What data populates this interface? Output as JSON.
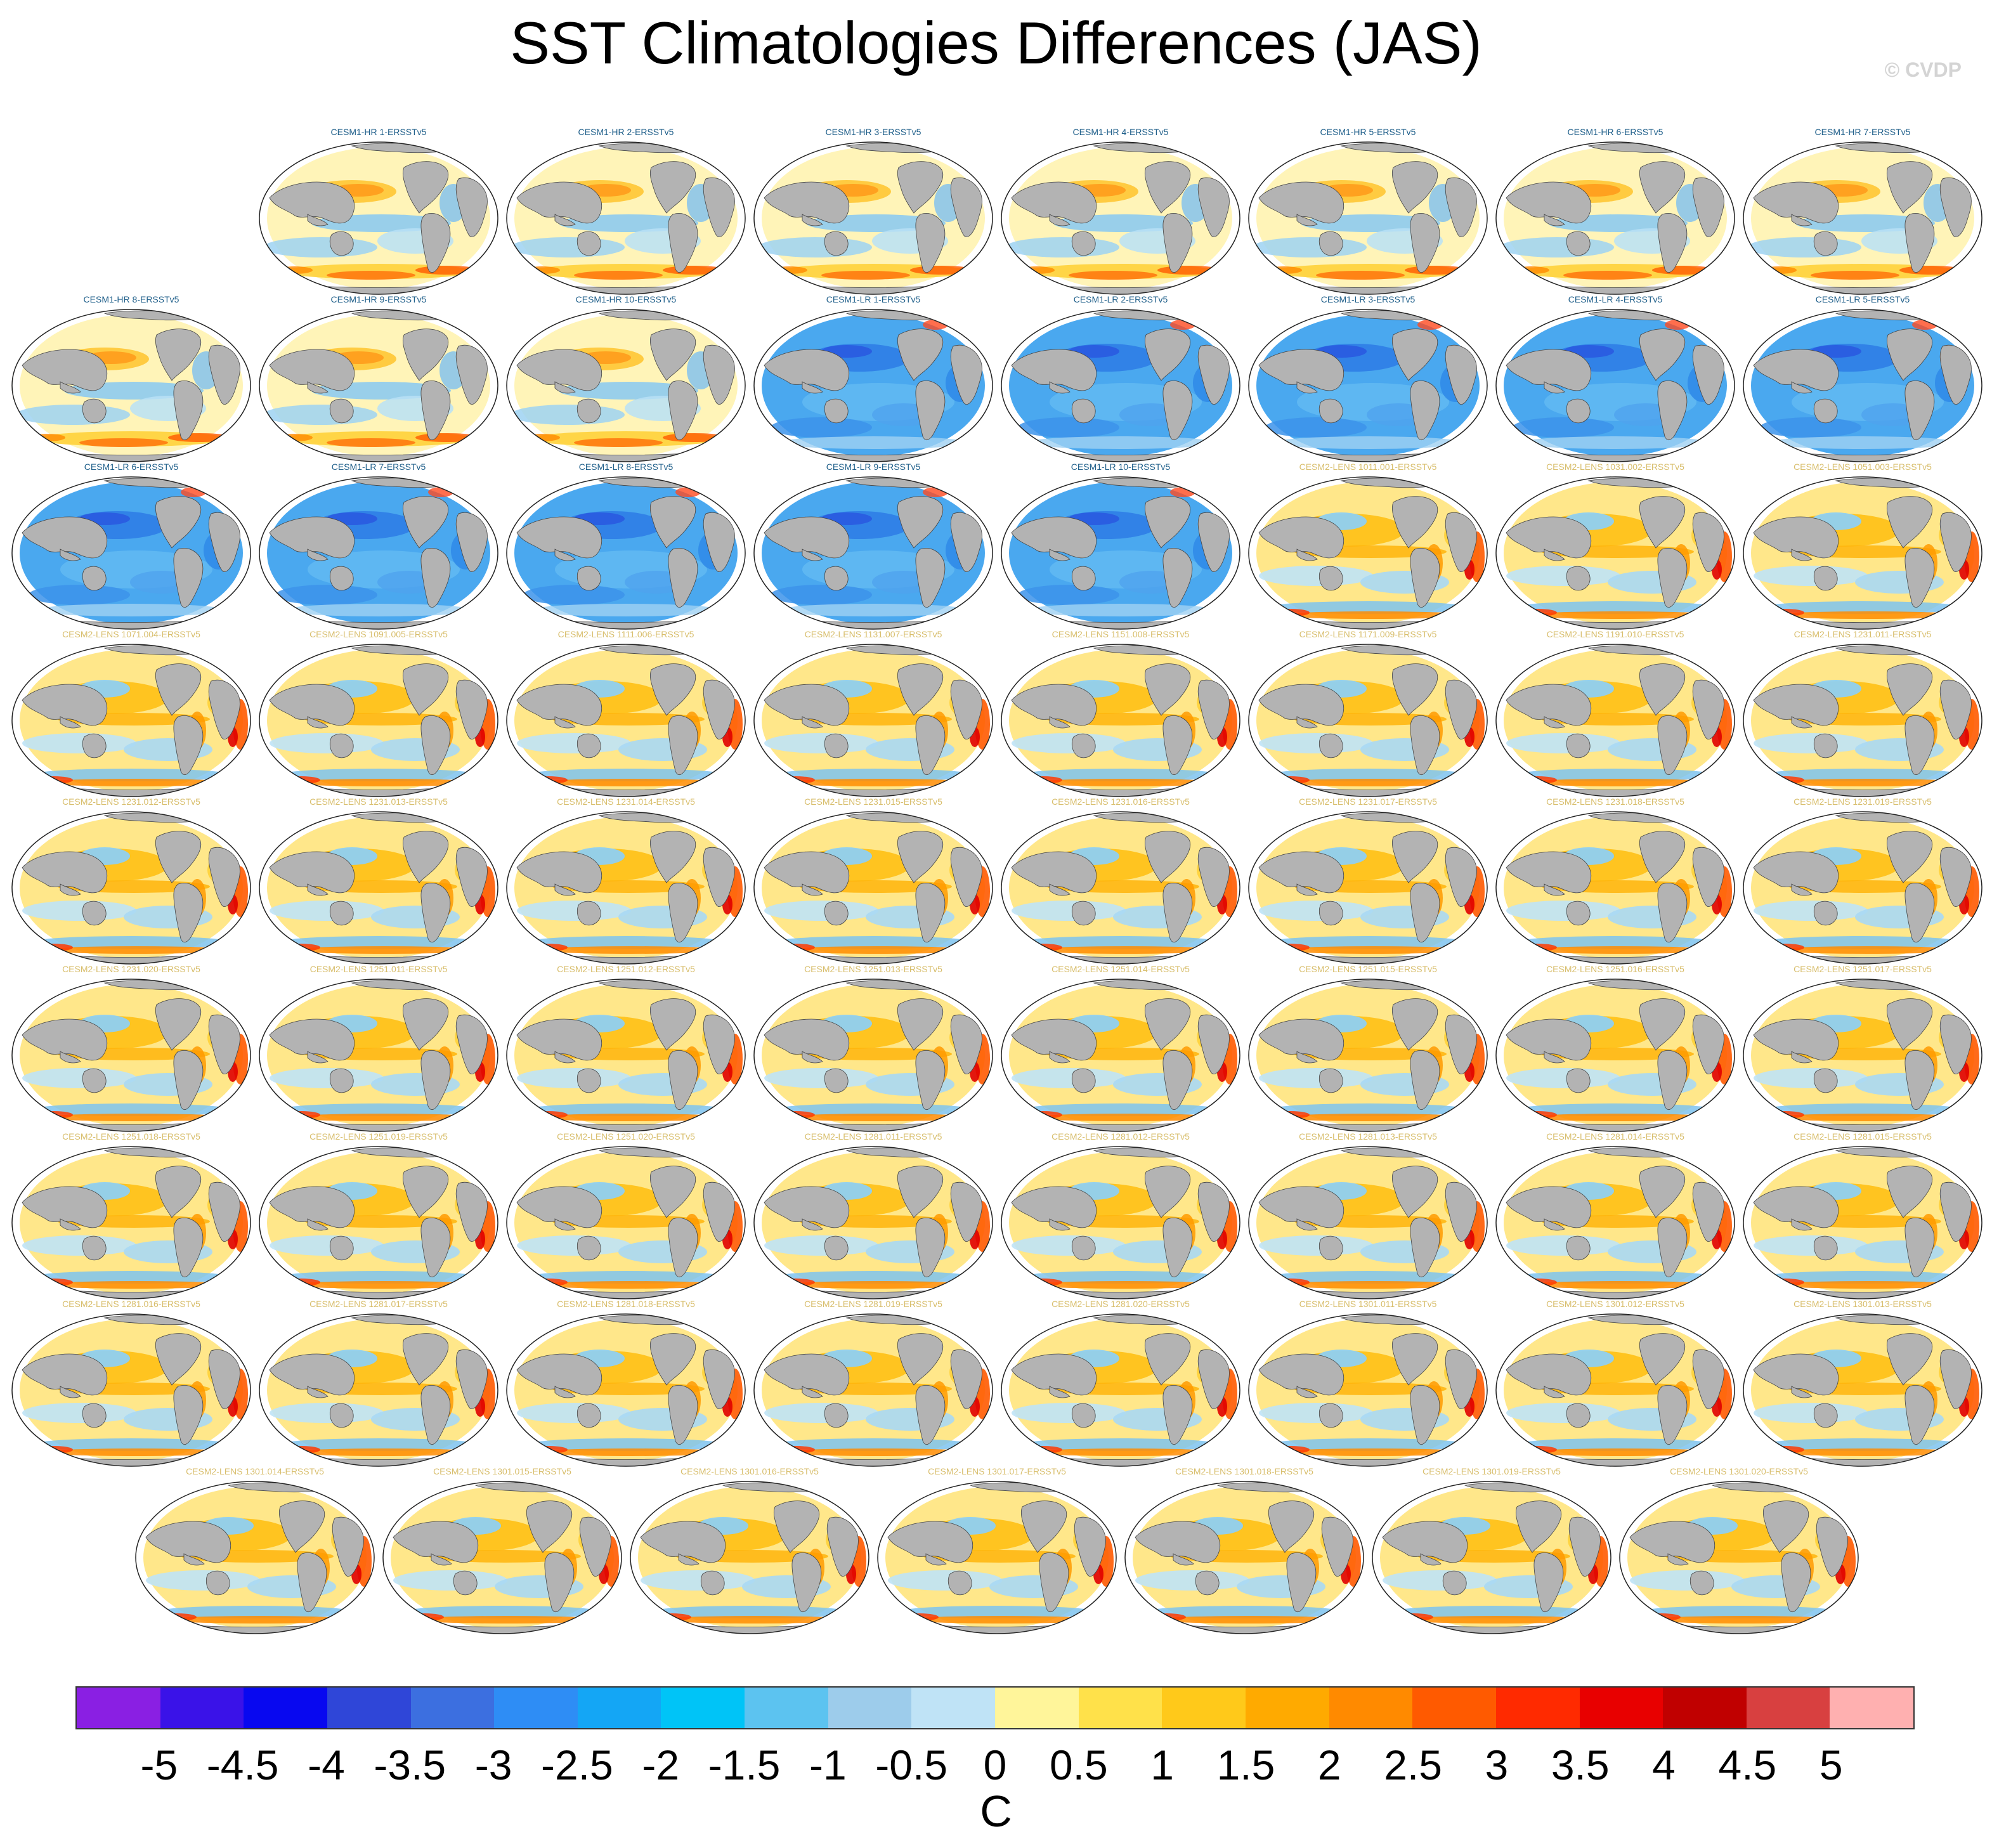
{
  "page": {
    "title": "SST Climatologies Differences (JAS)",
    "watermark": "© CVDP"
  },
  "chart_data": {
    "type": "heatmap",
    "title": "SST Climatologies Differences (JAS)",
    "projection": "global map panels",
    "units": "C",
    "colorbar": {
      "ticks": [
        "-5",
        "-4.5",
        "-4",
        "-3.5",
        "-3",
        "-2.5",
        "-2",
        "-1.5",
        "-1",
        "-0.5",
        "0",
        "0.5",
        "1",
        "1.5",
        "2",
        "2.5",
        "3",
        "3.5",
        "4",
        "4.5",
        "5"
      ],
      "colors": [
        "#8a1fe3",
        "#3a12e8",
        "#0808f0",
        "#2f46d8",
        "#3c6fe0",
        "#2e8df5",
        "#14a6f5",
        "#00c4f7",
        "#5cc3f0",
        "#9dcceb",
        "#bfe3f6",
        "#fff59a",
        "#ffe14a",
        "#ffc91a",
        "#ffaa00",
        "#ff8a00",
        "#ff5a00",
        "#ff2a00",
        "#e80000",
        "#c00000",
        "#d84040",
        "#ffb0b0"
      ]
    },
    "label_colors": {
      "CESM1": "#1f5f8a",
      "CESM2": "#d8be6c"
    },
    "panels": [
      {
        "label": "CESM1-HR 1-ERSSTv5",
        "style": "hr"
      },
      {
        "label": "CESM1-HR 2-ERSSTv5",
        "style": "hr"
      },
      {
        "label": "CESM1-HR 3-ERSSTv5",
        "style": "hr"
      },
      {
        "label": "CESM1-HR 4-ERSSTv5",
        "style": "hr"
      },
      {
        "label": "CESM1-HR 5-ERSSTv5",
        "style": "hr"
      },
      {
        "label": "CESM1-HR 6-ERSSTv5",
        "style": "hr"
      },
      {
        "label": "CESM1-HR 7-ERSSTv5",
        "style": "hr"
      },
      {
        "label": "CESM1-HR 8-ERSSTv5",
        "style": "hr"
      },
      {
        "label": "CESM1-HR 9-ERSSTv5",
        "style": "hr"
      },
      {
        "label": "CESM1-HR 10-ERSSTv5",
        "style": "hr"
      },
      {
        "label": "CESM1-LR 1-ERSSTv5",
        "style": "lr"
      },
      {
        "label": "CESM1-LR 2-ERSSTv5",
        "style": "lr"
      },
      {
        "label": "CESM1-LR 3-ERSSTv5",
        "style": "lr"
      },
      {
        "label": "CESM1-LR 4-ERSSTv5",
        "style": "lr"
      },
      {
        "label": "CESM1-LR 5-ERSSTv5",
        "style": "lr"
      },
      {
        "label": "CESM1-LR 6-ERSSTv5",
        "style": "lr"
      },
      {
        "label": "CESM1-LR 7-ERSSTv5",
        "style": "lr"
      },
      {
        "label": "CESM1-LR 8-ERSSTv5",
        "style": "lr"
      },
      {
        "label": "CESM1-LR 9-ERSSTv5",
        "style": "lr"
      },
      {
        "label": "CESM1-LR 10-ERSSTv5",
        "style": "lr"
      },
      {
        "label": "CESM2-LENS 1011.001-ERSSTv5",
        "style": "lens"
      },
      {
        "label": "CESM2-LENS 1031.002-ERSSTv5",
        "style": "lens"
      },
      {
        "label": "CESM2-LENS 1051.003-ERSSTv5",
        "style": "lens"
      },
      {
        "label": "CESM2-LENS 1071.004-ERSSTv5",
        "style": "lens"
      },
      {
        "label": "CESM2-LENS 1091.005-ERSSTv5",
        "style": "lens"
      },
      {
        "label": "CESM2-LENS 1111.006-ERSSTv5",
        "style": "lens"
      },
      {
        "label": "CESM2-LENS 1131.007-ERSSTv5",
        "style": "lens"
      },
      {
        "label": "CESM2-LENS 1151.008-ERSSTv5",
        "style": "lens"
      },
      {
        "label": "CESM2-LENS 1171.009-ERSSTv5",
        "style": "lens"
      },
      {
        "label": "CESM2-LENS 1191.010-ERSSTv5",
        "style": "lens"
      },
      {
        "label": "CESM2-LENS 1231.011-ERSSTv5",
        "style": "lens"
      },
      {
        "label": "CESM2-LENS 1231.012-ERSSTv5",
        "style": "lens"
      },
      {
        "label": "CESM2-LENS 1231.013-ERSSTv5",
        "style": "lens"
      },
      {
        "label": "CESM2-LENS 1231.014-ERSSTv5",
        "style": "lens"
      },
      {
        "label": "CESM2-LENS 1231.015-ERSSTv5",
        "style": "lens"
      },
      {
        "label": "CESM2-LENS 1231.016-ERSSTv5",
        "style": "lens"
      },
      {
        "label": "CESM2-LENS 1231.017-ERSSTv5",
        "style": "lens"
      },
      {
        "label": "CESM2-LENS 1231.018-ERSSTv5",
        "style": "lens"
      },
      {
        "label": "CESM2-LENS 1231.019-ERSSTv5",
        "style": "lens"
      },
      {
        "label": "CESM2-LENS 1231.020-ERSSTv5",
        "style": "lens"
      },
      {
        "label": "CESM2-LENS 1251.011-ERSSTv5",
        "style": "lens"
      },
      {
        "label": "CESM2-LENS 1251.012-ERSSTv5",
        "style": "lens"
      },
      {
        "label": "CESM2-LENS 1251.013-ERSSTv5",
        "style": "lens"
      },
      {
        "label": "CESM2-LENS 1251.014-ERSSTv5",
        "style": "lens"
      },
      {
        "label": "CESM2-LENS 1251.015-ERSSTv5",
        "style": "lens"
      },
      {
        "label": "CESM2-LENS 1251.016-ERSSTv5",
        "style": "lens"
      },
      {
        "label": "CESM2-LENS 1251.017-ERSSTv5",
        "style": "lens"
      },
      {
        "label": "CESM2-LENS 1251.018-ERSSTv5",
        "style": "lens"
      },
      {
        "label": "CESM2-LENS 1251.019-ERSSTv5",
        "style": "lens"
      },
      {
        "label": "CESM2-LENS 1251.020-ERSSTv5",
        "style": "lens"
      },
      {
        "label": "CESM2-LENS 1281.011-ERSSTv5",
        "style": "lens"
      },
      {
        "label": "CESM2-LENS 1281.012-ERSSTv5",
        "style": "lens"
      },
      {
        "label": "CESM2-LENS 1281.013-ERSSTv5",
        "style": "lens"
      },
      {
        "label": "CESM2-LENS 1281.014-ERSSTv5",
        "style": "lens"
      },
      {
        "label": "CESM2-LENS 1281.015-ERSSTv5",
        "style": "lens"
      },
      {
        "label": "CESM2-LENS 1281.016-ERSSTv5",
        "style": "lens"
      },
      {
        "label": "CESM2-LENS 1281.017-ERSSTv5",
        "style": "lens"
      },
      {
        "label": "CESM2-LENS 1281.018-ERSSTv5",
        "style": "lens"
      },
      {
        "label": "CESM2-LENS 1281.019-ERSSTv5",
        "style": "lens"
      },
      {
        "label": "CESM2-LENS 1281.020-ERSSTv5",
        "style": "lens"
      },
      {
        "label": "CESM2-LENS 1301.011-ERSSTv5",
        "style": "lens"
      },
      {
        "label": "CESM2-LENS 1301.012-ERSSTv5",
        "style": "lens"
      },
      {
        "label": "CESM2-LENS 1301.013-ERSSTv5",
        "style": "lens"
      },
      {
        "label": "CESM2-LENS 1301.014-ERSSTv5",
        "style": "lens"
      },
      {
        "label": "CESM2-LENS 1301.015-ERSSTv5",
        "style": "lens"
      },
      {
        "label": "CESM2-LENS 1301.016-ERSSTv5",
        "style": "lens"
      },
      {
        "label": "CESM2-LENS 1301.017-ERSSTv5",
        "style": "lens"
      },
      {
        "label": "CESM2-LENS 1301.018-ERSSTv5",
        "style": "lens"
      },
      {
        "label": "CESM2-LENS 1301.019-ERSSTv5",
        "style": "lens"
      },
      {
        "label": "CESM2-LENS 1301.020-ERSSTv5",
        "style": "lens"
      }
    ]
  }
}
